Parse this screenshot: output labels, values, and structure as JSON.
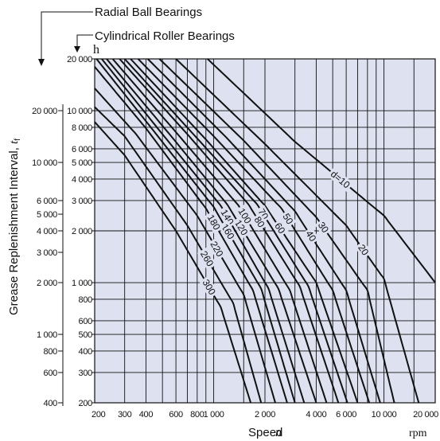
{
  "chart_data": {
    "type": "line",
    "header": {
      "radial_label": "Radial Ball Bearings",
      "cylindrical_label": "Cylindrical Roller Bearings",
      "h_unit": "h"
    },
    "x_axis": {
      "label_text": "Speed",
      "label_var": "n",
      "unit": "rpm",
      "scale": "log",
      "range": [
        200,
        20000
      ],
      "ticks": [
        200,
        300,
        400,
        600,
        800,
        1000,
        2000,
        4000,
        6000,
        10000,
        20000
      ],
      "tick_labels": [
        "200",
        "300",
        "400",
        "600",
        "800",
        "1 000",
        "2 000",
        "4 000",
        "6 000",
        "10 000",
        "20 000"
      ],
      "grid": [
        200,
        300,
        400,
        500,
        600,
        700,
        800,
        900,
        1000,
        1500,
        2000,
        3000,
        4000,
        5000,
        6000,
        7000,
        8000,
        9000,
        10000,
        15000,
        20000
      ]
    },
    "y_axis_inner": {
      "description": "Cylindrical Roller Bearings",
      "scale": "log",
      "range": [
        200,
        20000
      ],
      "ticks": [
        200,
        300,
        400,
        500,
        600,
        800,
        1000,
        2000,
        3000,
        4000,
        5000,
        6000,
        8000,
        10000,
        20000
      ],
      "tick_labels": [
        "200",
        "300",
        "400",
        "500",
        "600",
        "800",
        "1 000",
        "2 000",
        "3 000",
        "4 000",
        "5 000",
        "6 000",
        "8 000",
        "10 000",
        "20 000"
      ],
      "grid": [
        300,
        400,
        500,
        600,
        800,
        1000,
        2000,
        3000,
        4000,
        5000,
        6000,
        8000,
        10000
      ]
    },
    "y_axis_outer": {
      "description": "Radial Ball Bearings",
      "label_text": "Grease Replenishment Interval, ",
      "label_var": "t",
      "label_sub": "f",
      "scale": "log",
      "ticks": [
        400,
        600,
        800,
        1000,
        2000,
        3000,
        4000,
        5000,
        6000,
        10000,
        20000
      ],
      "tick_labels": [
        "400",
        "600",
        "800",
        "1 000",
        "2 000",
        "3 000",
        "4 000",
        "5 000",
        "6 000",
        "10 000",
        "20 000"
      ]
    },
    "series": [
      {
        "name": "d=10",
        "points": [
          [
            920,
            20000
          ],
          [
            3000,
            6600
          ],
          [
            10000,
            2450
          ],
          [
            20000,
            1000
          ]
        ]
      },
      {
        "name": "20",
        "points": [
          [
            600,
            20000
          ],
          [
            2000,
            6400
          ],
          [
            6000,
            2150
          ],
          [
            10000,
            1050
          ],
          [
            16000,
            200
          ]
        ]
      },
      {
        "name": "30",
        "points": [
          [
            480,
            20000
          ],
          [
            1500,
            6700
          ],
          [
            4000,
            2400
          ],
          [
            8000,
            900
          ],
          [
            11500,
            200
          ]
        ]
      },
      {
        "name": "40",
        "points": [
          [
            410,
            20000
          ],
          [
            1200,
            6900
          ],
          [
            3000,
            2600
          ],
          [
            6000,
            900
          ],
          [
            9500,
            200
          ]
        ]
      },
      {
        "name": "50",
        "points": [
          [
            360,
            20000
          ],
          [
            1000,
            7100
          ],
          [
            2500,
            2700
          ],
          [
            5000,
            900
          ],
          [
            8200,
            200
          ]
        ]
      },
      {
        "name": "60",
        "points": [
          [
            325,
            20000
          ],
          [
            900,
            6800
          ],
          [
            2000,
            2800
          ],
          [
            4000,
            1000
          ],
          [
            7000,
            200
          ]
        ]
      },
      {
        "name": "70",
        "points": [
          [
            300,
            20000
          ],
          [
            800,
            6900
          ],
          [
            1800,
            2850
          ],
          [
            3600,
            950
          ],
          [
            6100,
            200
          ]
        ]
      },
      {
        "name": "80",
        "points": [
          [
            280,
            20000
          ],
          [
            700,
            7300
          ],
          [
            1600,
            2850
          ],
          [
            3200,
            950
          ],
          [
            5400,
            200
          ]
        ]
      },
      {
        "name": "100",
        "points": [
          [
            255,
            20000
          ],
          [
            600,
            7500
          ],
          [
            1400,
            2800
          ],
          [
            2800,
            900
          ],
          [
            4600,
            200
          ]
        ]
      },
      {
        "name": "120",
        "points": [
          [
            235,
            20000
          ],
          [
            550,
            7300
          ],
          [
            1200,
            2850
          ],
          [
            2400,
            920
          ],
          [
            4000,
            200
          ]
        ]
      },
      {
        "name": "140",
        "points": [
          [
            220,
            20000
          ],
          [
            500,
            7300
          ],
          [
            1100,
            2800
          ],
          [
            2100,
            920
          ],
          [
            3400,
            200
          ]
        ]
      },
      {
        "name": "160",
        "points": [
          [
            205,
            20000
          ],
          [
            450,
            7500
          ],
          [
            1000,
            2750
          ],
          [
            1900,
            920
          ],
          [
            3000,
            200
          ]
        ]
      },
      {
        "name": "180",
        "points": [
          [
            200,
            18000
          ],
          [
            400,
            7900
          ],
          [
            900,
            2700
          ],
          [
            1700,
            900
          ],
          [
            2700,
            200
          ]
        ]
      },
      {
        "name": "220",
        "points": [
          [
            200,
            13500
          ],
          [
            350,
            7300
          ],
          [
            800,
            2450
          ],
          [
            1500,
            850
          ],
          [
            2300,
            200
          ]
        ]
      },
      {
        "name": "260",
        "points": [
          [
            200,
            10500
          ],
          [
            300,
            7100
          ],
          [
            700,
            2150
          ],
          [
            1300,
            760
          ],
          [
            1900,
            200
          ]
        ]
      },
      {
        "name": "300",
        "points": [
          [
            200,
            8600
          ],
          [
            300,
            5500
          ],
          [
            600,
            2000
          ],
          [
            1100,
            720
          ],
          [
            1650,
            200
          ]
        ]
      }
    ],
    "curve_labels": [
      {
        "text": "d=10",
        "series": "d=10"
      },
      {
        "text": "20",
        "series": "20"
      },
      {
        "text": "30",
        "series": "30"
      },
      {
        "text": "40",
        "series": "40"
      },
      {
        "text": "50",
        "series": "50"
      },
      {
        "text": "60",
        "series": "60"
      },
      {
        "text": "70",
        "series": "70"
      },
      {
        "text": "80",
        "series": "80"
      },
      {
        "text": "100",
        "series": "100"
      },
      {
        "text": "120",
        "series": "120"
      },
      {
        "text": "140",
        "series": "140"
      },
      {
        "text": "160",
        "series": "160"
      },
      {
        "text": "180",
        "series": "180"
      },
      {
        "text": "220",
        "series": "220"
      },
      {
        "text": "260",
        "series": "260"
      },
      {
        "text": "300",
        "series": "300"
      }
    ],
    "colors": {
      "plot_bg": "#dde1f0",
      "line": "#111111"
    },
    "grid": true
  }
}
